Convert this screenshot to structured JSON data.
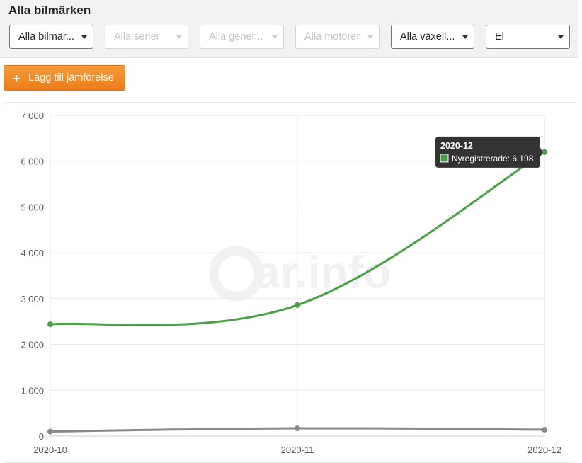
{
  "filters": {
    "title": "Alla bilmärken",
    "dropdowns": [
      {
        "value": "Alla bilmär...",
        "enabled": true
      },
      {
        "value": "Alla serier",
        "enabled": false
      },
      {
        "value": "Alla gener...",
        "enabled": false
      },
      {
        "value": "Alla motorer",
        "enabled": false
      },
      {
        "value": "Alla växell...",
        "enabled": true
      },
      {
        "value": "El",
        "enabled": true
      }
    ]
  },
  "actions": {
    "add_comparison_label": "Lägg till jämförelse",
    "add_icon": "plus-icon"
  },
  "watermark": "ar.info",
  "chart_data": {
    "type": "line",
    "categories": [
      "2020-10",
      "2020-11",
      "2020-12"
    ],
    "ylim": [
      0,
      7000
    ],
    "yticks": [
      "0",
      "1 000",
      "2 000",
      "3 000",
      "4 000",
      "5 000",
      "6 000",
      "7 000"
    ],
    "grid": true,
    "series": [
      {
        "name": "Nyregistrerade",
        "color": "#4a9e45",
        "values": [
          2440,
          2860,
          6198
        ]
      },
      {
        "color": "#888888",
        "values": [
          100,
          170,
          140
        ]
      }
    ],
    "tooltip": {
      "title": "2020-12",
      "series_label": "Nyregistrerade",
      "value_text": "6 198"
    }
  }
}
